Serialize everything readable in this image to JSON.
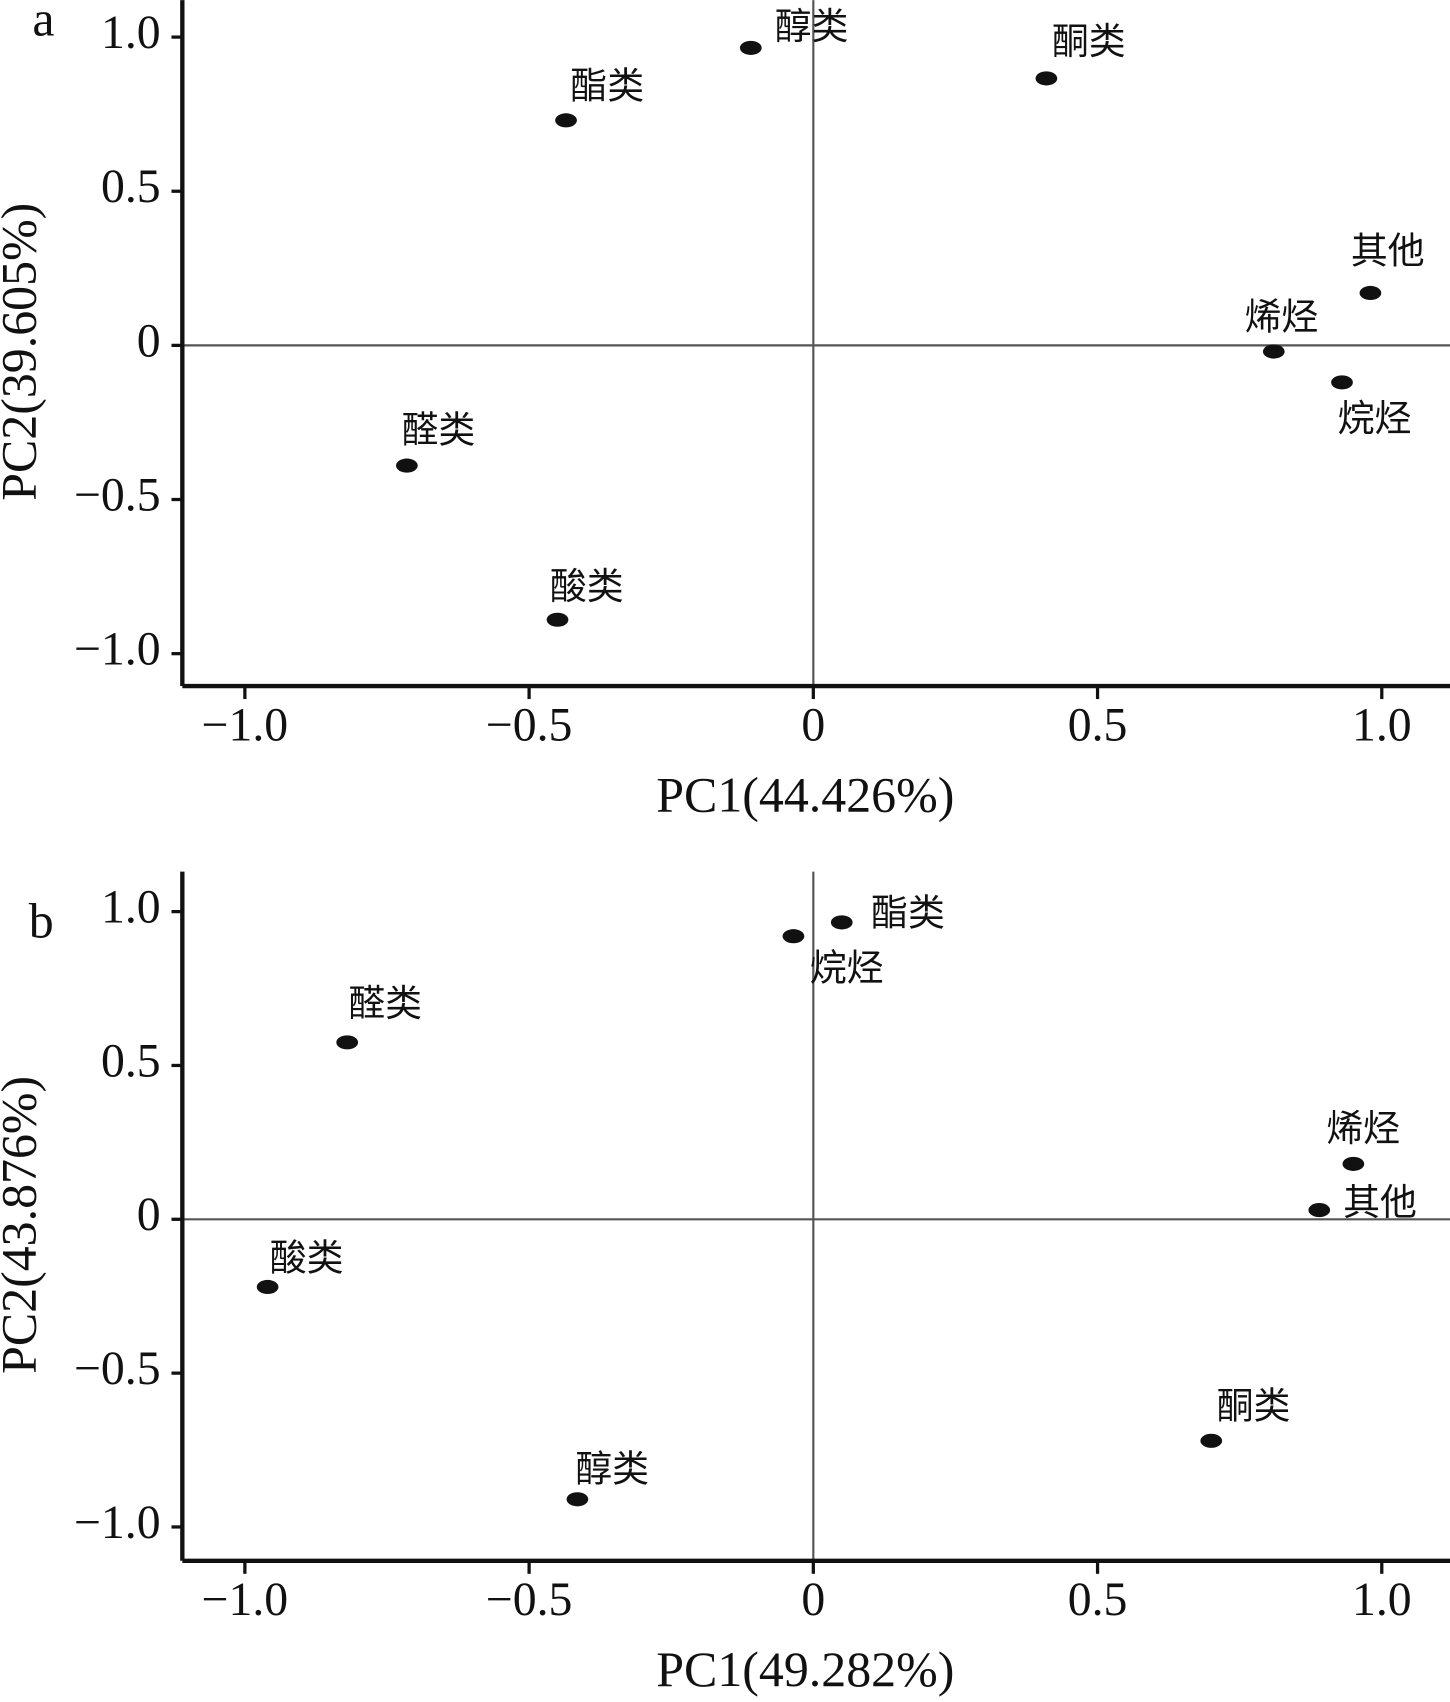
{
  "chart_data": [
    {
      "type": "scatter",
      "label": "a",
      "xlabel": "PC1(44.426%)",
      "ylabel": "PC2(39.605%)",
      "xlim": [
        -1.11,
        1.12
      ],
      "ylim": [
        -1.105,
        1.12
      ],
      "xticks": [
        {
          "value": -1,
          "label": "−1.0"
        },
        {
          "value": -0.5,
          "label": "−0.5"
        },
        0,
        0.5,
        {
          "value": 1,
          "label": "1.0"
        }
      ],
      "yticks": [
        {
          "value": -1,
          "label": "−1.0"
        },
        {
          "value": -0.5,
          "label": "−0.5"
        },
        0,
        0.5,
        {
          "value": 1,
          "label": "1.0"
        }
      ],
      "color": "#111111",
      "point_labels": [
        "醇类",
        "酮类",
        "酯类",
        "其他",
        "烯烃",
        "烷烃",
        "醛类",
        "酸类"
      ],
      "x": [
        -0.11,
        0.41,
        -0.435,
        0.98,
        0.81,
        0.93,
        -0.715,
        -0.45
      ],
      "values": [
        0.965,
        0.866,
        0.73,
        0.17,
        -0.02,
        -0.12,
        -0.39,
        -0.89
      ]
    },
    {
      "type": "scatter",
      "label": "b",
      "xlabel": "PC1(49.282%)",
      "ylabel": "PC2(43.876%)",
      "xlim": [
        -1.11,
        1.12
      ],
      "ylim": [
        -1.11,
        1.13
      ],
      "xticks": [
        {
          "value": -1,
          "label": "−1.0"
        },
        {
          "value": -0.5,
          "label": "−0.5"
        },
        0,
        0.5,
        {
          "value": 1,
          "label": "1.0"
        }
      ],
      "yticks": [
        {
          "value": -1,
          "label": "−1.0"
        },
        {
          "value": -0.5,
          "label": "−0.5"
        },
        0,
        0.5,
        {
          "value": 1,
          "label": "1.0"
        }
      ],
      "color": "#111111",
      "point_labels": [
        "酯类",
        "烷烃",
        "醛类",
        "烯烃",
        "其他",
        "酸类",
        "酮类",
        "醇类"
      ],
      "x": [
        0.05,
        -0.035,
        -0.82,
        0.95,
        0.89,
        -0.96,
        0.7,
        -0.415
      ],
      "values": [
        0.965,
        0.92,
        0.575,
        0.18,
        0.03,
        -0.22,
        -0.72,
        -0.91
      ]
    }
  ]
}
